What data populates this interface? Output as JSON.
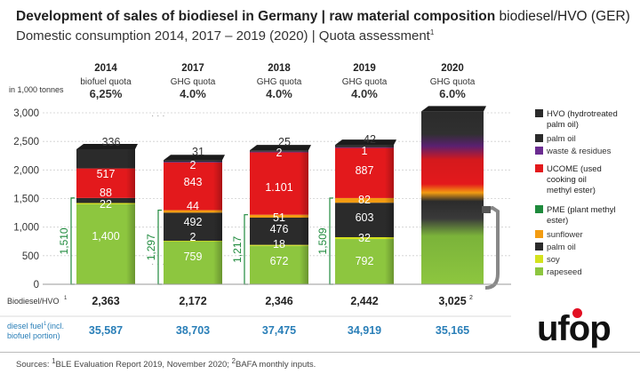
{
  "header": {
    "title_bold": "Development of sales of biodiesel in Germany | raw material composition",
    "title_light": " biodiesel/HVO (GER)",
    "subtitle": "Domestic consumption 2014, 2017 – 2019 (2020) | Quota assessment",
    "subtitle_sup": "1"
  },
  "chart_data": {
    "type": "bar",
    "stacked": true,
    "ylabel": "in 1,000 tonnes",
    "ylim": [
      0,
      3000
    ],
    "yticks": [
      0,
      500,
      1000,
      1500,
      2000,
      2500,
      3000
    ],
    "ytick_labels": [
      "0",
      "500",
      "1,000",
      "1,500",
      "2,000",
      "2,500",
      "3,000"
    ],
    "categories": [
      "2014",
      "2017",
      "2018",
      "2019",
      "2020"
    ],
    "quota_types": [
      "biofuel quota",
      "GHG quota",
      "GHG quota",
      "GHG quota",
      "GHG quota"
    ],
    "quota_values": [
      "6,25%",
      "4.0%",
      "4.0%",
      "4.0%",
      "6.0%"
    ],
    "segment_colors": {
      "pme_rapeseed": "#8dc63f",
      "pme_soy": "#d4e21e",
      "pme_palm_oil": "#2b2b2b",
      "pme_sunflower": "#f39c12",
      "ucome": "#e3191c",
      "hvo_waste": "#6b2c91",
      "hvo_palm_oil": "#2b2b2b"
    },
    "series": [
      {
        "key": "pme_rapeseed",
        "name": "rapeseed",
        "values": [
          1400,
          759,
          672,
          792,
          null
        ],
        "labels": [
          "1,400",
          "759",
          "672",
          "792",
          ""
        ]
      },
      {
        "key": "pme_soy",
        "name": "soy",
        "values": [
          22,
          2,
          18,
          32,
          null
        ],
        "labels": [
          "22",
          "2",
          "18",
          "32",
          ""
        ]
      },
      {
        "key": "pme_palm_oil",
        "name": "palm oil",
        "values": [
          88,
          492,
          476,
          603,
          null
        ],
        "labels": [
          "88",
          "492",
          "476",
          "603",
          ""
        ]
      },
      {
        "key": "pme_sunflower",
        "name": "sunflower",
        "values": [
          0,
          44,
          51,
          82,
          null
        ],
        "labels": [
          "",
          "44",
          "51",
          "82",
          ""
        ]
      },
      {
        "key": "ucome",
        "name": "UCOME",
        "values": [
          517,
          843,
          1101,
          887,
          null
        ],
        "labels": [
          "517",
          "843",
          "1.101",
          "887",
          ""
        ]
      },
      {
        "key": "hvo_waste",
        "name": "waste & residues",
        "values": [
          0,
          2,
          2,
          1,
          null
        ],
        "labels": [
          "",
          "2",
          "2",
          "1",
          ""
        ]
      },
      {
        "key": "hvo_palm_oil",
        "name": "palm oil",
        "values": [
          336,
          31,
          25,
          42,
          null
        ],
        "labels": [
          "336",
          "31",
          "25",
          "42",
          ""
        ]
      }
    ],
    "pme_totals": [
      1510,
      1297,
      1217,
      1509,
      null
    ],
    "pme_total_labels": [
      "1,510",
      "1,297",
      "1,217",
      "1,509",
      ""
    ],
    "biodiesel_hvo_label": "Biodiesel/HVO",
    "biodiesel_hvo_sup": "1",
    "biodiesel_hvo_totals": [
      "2,363",
      "2,172",
      "2,346",
      "2,442",
      "3,025"
    ],
    "biodiesel_hvo_total_sup": [
      "",
      "",
      "",
      "",
      "2"
    ],
    "biodiesel_hvo_total_values": [
      2363,
      2172,
      2346,
      2442,
      3025
    ],
    "diesel_fuel_label_line1": "diesel fuel",
    "diesel_fuel_label_sup": "1",
    "diesel_fuel_label_line1_rest": " (incl.",
    "diesel_fuel_label_line2": "biofuel portion)",
    "diesel_fuel_totals": [
      "35,587",
      "38,703",
      "37,475",
      "34,919",
      "35,165"
    ],
    "legend": [
      {
        "group": "HVO (hydrotreated palm oil)",
        "group_color": "#2b2b2b",
        "items": [
          {
            "name": "palm oil",
            "color": "#2b2b2b"
          },
          {
            "name": "waste & residues",
            "color": "#6b2c91"
          }
        ]
      },
      {
        "group": "UCOME (used cooking oil methyl ester)",
        "group_color": "#e3191c",
        "items": []
      },
      {
        "group": "PME (plant methyl ester)",
        "group_color": "#1e8a3c",
        "items": [
          {
            "name": "sunflower",
            "color": "#f39c12"
          },
          {
            "name": "palm oil",
            "color": "#2b2b2b"
          },
          {
            "name": "soy",
            "color": "#d4e21e"
          },
          {
            "name": "rapeseed",
            "color": "#8dc63f"
          }
        ]
      }
    ]
  },
  "logo": {
    "text": "ufop"
  },
  "footer": {
    "sources_prefix": "Sources: ",
    "sup1": "1",
    "source1": "BLE Evaluation Report 2019, November 2020; ",
    "sup2": "2",
    "source2": "BAFA monthly inputs."
  }
}
